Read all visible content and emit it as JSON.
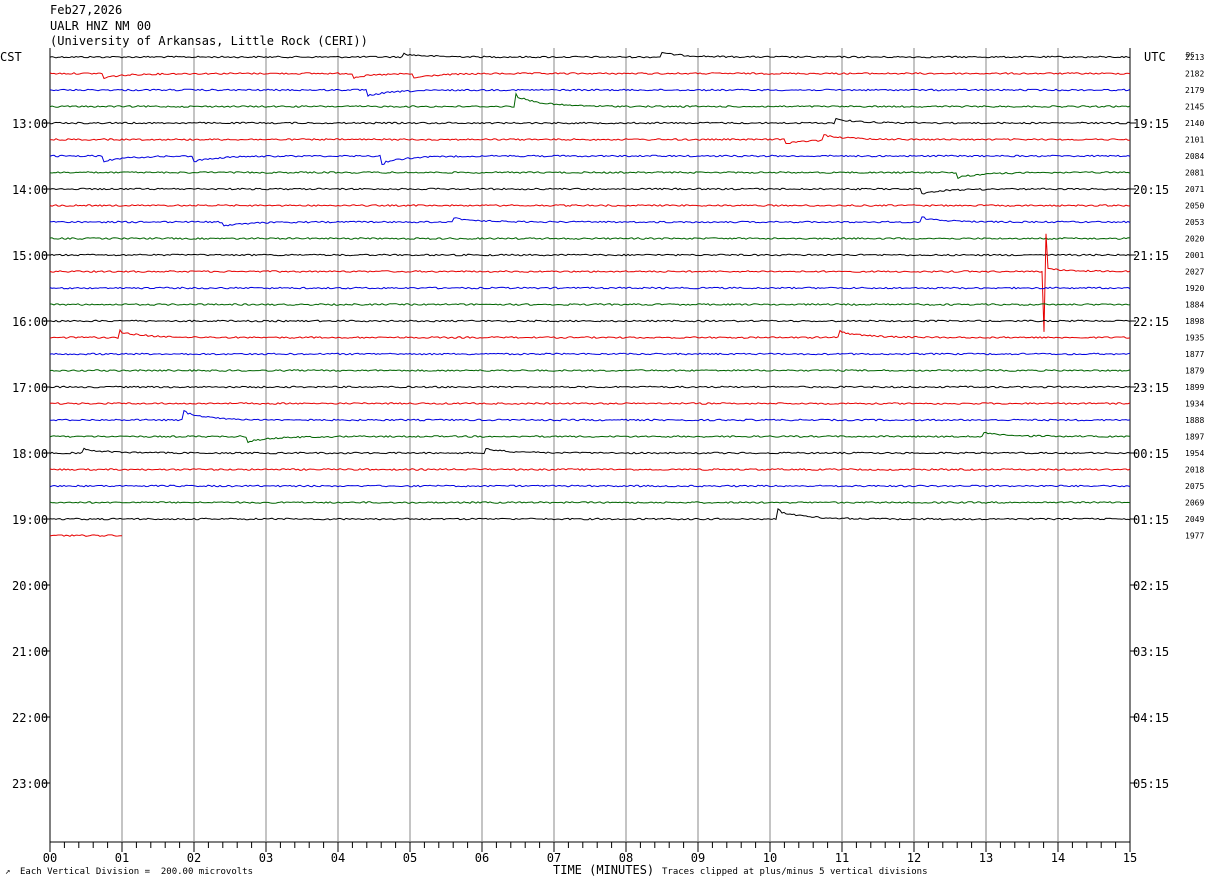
{
  "header": {
    "date": "Feb27,2026",
    "station": "UALR HNZ NM 00",
    "institution": "(University of Arkansas, Little Rock (CERI))"
  },
  "left_zone": "CST",
  "right_zone": "UTC",
  "dc_header": "DC",
  "footer": {
    "scale_note": "Each Vertical Division =  200.00 microvolts",
    "xlabel": "TIME (MINUTES)",
    "clip_note": "Traces clipped at plus/minus 5 vertical divisions",
    "corner_mark": "↗"
  },
  "colors": {
    "trace_cycle": [
      "#000000",
      "#e60000",
      "#0000e0",
      "#006400"
    ],
    "grid": "#888888"
  },
  "chart_data": {
    "type": "line",
    "title": "",
    "xlabel": "TIME (MINUTES)",
    "xlim": [
      0,
      15
    ],
    "x_ticks": [
      "00",
      "01",
      "02",
      "03",
      "04",
      "05",
      "06",
      "07",
      "08",
      "09",
      "10",
      "11",
      "12",
      "13",
      "14",
      "15"
    ],
    "left_hour_labels": [
      "13:00",
      "14:00",
      "15:00",
      "16:00",
      "17:00",
      "18:00",
      "19:00",
      "20:00",
      "21:00",
      "22:00",
      "23:00"
    ],
    "right_hour_labels": [
      "19:15",
      "20:15",
      "21:15",
      "22:15",
      "23:15",
      "00:15",
      "01:15",
      "02:15",
      "03:15",
      "04:15",
      "05:15"
    ],
    "dc_values": [
      "2213",
      "2182",
      "2179",
      "2145",
      "2140",
      "2101",
      "2084",
      "2081",
      "2071",
      "2050",
      "2053",
      "2020",
      "2001",
      "2027",
      "1920",
      "1884",
      "1898",
      "1935",
      "1877",
      "1879",
      "1899",
      "1934",
      "1888",
      "1897",
      "1954",
      "2018",
      "2075",
      "2069",
      "2049",
      "1977"
    ],
    "trace_count": 30,
    "last_trace_end_minute": 1.0,
    "events": [
      {
        "trace": 0,
        "minute": 4.9,
        "amp": -3
      },
      {
        "trace": 0,
        "minute": 8.5,
        "amp": -4
      },
      {
        "trace": 1,
        "minute": 0.75,
        "amp": 4
      },
      {
        "trace": 1,
        "minute": 4.2,
        "amp": 4
      },
      {
        "trace": 1,
        "minute": 5.05,
        "amp": 4
      },
      {
        "trace": 2,
        "minute": 4.4,
        "amp": 6
      },
      {
        "trace": 3,
        "minute": 6.45,
        "amp": -11
      },
      {
        "trace": 4,
        "minute": 10.9,
        "amp": -4
      },
      {
        "trace": 5,
        "minute": 10.2,
        "amp": 4
      },
      {
        "trace": 5,
        "minute": 10.75,
        "amp": -5
      },
      {
        "trace": 6,
        "minute": 0.75,
        "amp": 5
      },
      {
        "trace": 6,
        "minute": 2.0,
        "amp": 5
      },
      {
        "trace": 6,
        "minute": 4.6,
        "amp": 7
      },
      {
        "trace": 7,
        "minute": 12.6,
        "amp": 5
      },
      {
        "trace": 8,
        "minute": 12.1,
        "amp": 4
      },
      {
        "trace": 10,
        "minute": 2.4,
        "amp": 4
      },
      {
        "trace": 10,
        "minute": 5.6,
        "amp": -4
      },
      {
        "trace": 10,
        "minute": 12.1,
        "amp": -4
      },
      {
        "trace": 13,
        "minute": 13.82,
        "amp": -38,
        "type": "quake"
      },
      {
        "trace": 17,
        "minute": 0.95,
        "amp": -6
      },
      {
        "trace": 17,
        "minute": 10.95,
        "amp": -6
      },
      {
        "trace": 22,
        "minute": 1.85,
        "amp": -8
      },
      {
        "trace": 23,
        "minute": 2.75,
        "amp": 5
      },
      {
        "trace": 23,
        "minute": 12.95,
        "amp": -4
      },
      {
        "trace": 24,
        "minute": 0.45,
        "amp": -4
      },
      {
        "trace": 24,
        "minute": 6.05,
        "amp": -4
      },
      {
        "trace": 28,
        "minute": 10.1,
        "amp": -8
      }
    ]
  }
}
